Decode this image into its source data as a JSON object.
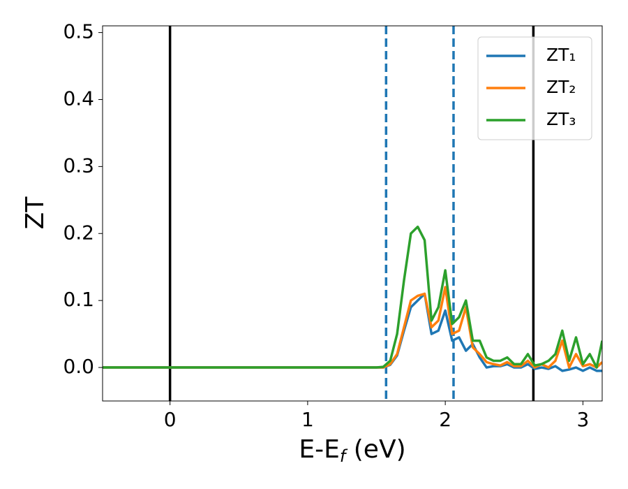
{
  "chart_data": {
    "type": "line",
    "xlabel": [
      "E-E",
      "f",
      " (eV)"
    ],
    "ylabel": "ZT",
    "x": [
      -0.49,
      0,
      0.5,
      1.0,
      1.45,
      1.5,
      1.55,
      1.6,
      1.65,
      1.7,
      1.75,
      1.8,
      1.85,
      1.9,
      1.95,
      2.0,
      2.05,
      2.1,
      2.15,
      2.2,
      2.25,
      2.3,
      2.35,
      2.4,
      2.45,
      2.5,
      2.55,
      2.6,
      2.65,
      2.7,
      2.75,
      2.8,
      2.85,
      2.9,
      2.95,
      3.0,
      3.05,
      3.1,
      3.14
    ],
    "series": [
      {
        "name": "ZT₁",
        "color": "#1f77b4",
        "values": [
          0,
          0,
          0,
          0,
          0,
          0,
          0,
          0.004,
          0.018,
          0.055,
          0.09,
          0.1,
          0.11,
          0.05,
          0.055,
          0.085,
          0.04,
          0.045,
          0.025,
          0.035,
          0.015,
          0.0,
          0.002,
          0.002,
          0.005,
          0.0,
          0.0,
          0.005,
          -0.002,
          0.0,
          -0.002,
          0.002,
          -0.005,
          -0.003,
          0.0,
          -0.005,
          0.0,
          -0.005,
          -0.005
        ]
      },
      {
        "name": "ZT₂",
        "color": "#ff7f0e",
        "values": [
          0,
          0,
          0,
          0,
          0,
          0,
          0,
          0.005,
          0.02,
          0.06,
          0.1,
          0.107,
          0.11,
          0.06,
          0.07,
          0.12,
          0.05,
          0.055,
          0.09,
          0.03,
          0.02,
          0.008,
          0.005,
          0.003,
          0.008,
          0.002,
          0.002,
          0.01,
          0.0,
          0.005,
          0.0,
          0.01,
          0.04,
          0.0,
          0.02,
          0.002,
          0.005,
          0.0,
          0.008
        ]
      },
      {
        "name": "ZT₃",
        "color": "#2ca02c",
        "values": [
          0,
          0,
          0,
          0,
          0,
          0,
          0.001,
          0.01,
          0.05,
          0.13,
          0.2,
          0.21,
          0.19,
          0.07,
          0.09,
          0.145,
          0.065,
          0.075,
          0.1,
          0.04,
          0.04,
          0.015,
          0.01,
          0.01,
          0.015,
          0.005,
          0.005,
          0.02,
          0.003,
          0.005,
          0.01,
          0.02,
          0.055,
          0.01,
          0.045,
          0.005,
          0.02,
          0.0,
          0.04
        ]
      }
    ],
    "vlines": [
      {
        "x": 0,
        "color": "#000000",
        "style": "solid"
      },
      {
        "x": 2.64,
        "color": "#000000",
        "style": "solid"
      },
      {
        "x": 1.57,
        "color": "#1f77b4",
        "style": "dashed"
      },
      {
        "x": 2.06,
        "color": "#1f77b4",
        "style": "dashed"
      }
    ],
    "xlim": [
      -0.49,
      3.14
    ],
    "xticks": [
      0,
      1,
      2,
      3
    ],
    "ylim": [
      -0.05,
      0.51
    ],
    "yticks": [
      {
        "value": 0,
        "label": "0.0"
      },
      0.1,
      0.2,
      0.3,
      0.4,
      0.5
    ],
    "legend": "upper right"
  }
}
